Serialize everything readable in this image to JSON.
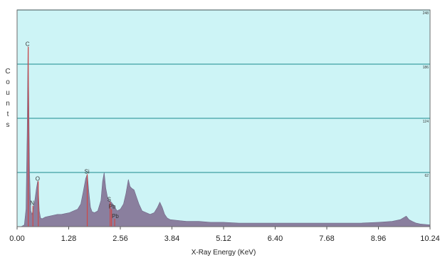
{
  "chart_data": {
    "type": "area",
    "title": "",
    "xlabel": "X-Ray Energy (KeV)",
    "ylabel": "Counts",
    "xlim": [
      0,
      10.24
    ],
    "ylim": [
      0,
      248
    ],
    "x_ticks": [
      "0.00",
      "1.28",
      "2.56",
      "3.84",
      "5.12",
      "6.40",
      "7.68",
      "8.96",
      "10.24"
    ],
    "y_ticks": [
      "62",
      "124",
      "186",
      "248"
    ],
    "grid": true,
    "colors": {
      "background": "#cdf4f6",
      "gridline": "#3f9fa4",
      "spectrum": "#8a7f9e",
      "marker": "#d04848"
    },
    "peaks": [
      {
        "label": "C",
        "x": 0.277,
        "y": 206
      },
      {
        "label": "O",
        "x": 0.525,
        "y": 52
      },
      {
        "label": "N",
        "x": 0.392,
        "y": 24
      },
      {
        "label": "Si",
        "x": 1.74,
        "y": 60
      },
      {
        "label": "S",
        "x": 2.307,
        "y": 28
      },
      {
        "label": "Pb",
        "x": 2.342,
        "y": 20
      },
      {
        "label": "Pb",
        "x": 2.42,
        "y": 9
      }
    ],
    "spectrum": {
      "x": [
        0.0,
        0.1,
        0.18,
        0.22,
        0.25,
        0.27,
        0.29,
        0.31,
        0.34,
        0.37,
        0.4,
        0.44,
        0.48,
        0.51,
        0.53,
        0.55,
        0.58,
        0.62,
        0.7,
        0.8,
        0.9,
        1.0,
        1.1,
        1.2,
        1.3,
        1.4,
        1.5,
        1.58,
        1.64,
        1.7,
        1.74,
        1.78,
        1.82,
        1.86,
        1.92,
        2.0,
        2.08,
        2.12,
        2.16,
        2.2,
        2.24,
        2.28,
        2.34,
        2.4,
        2.48,
        2.56,
        2.64,
        2.7,
        2.76,
        2.8,
        2.84,
        2.9,
        2.96,
        3.02,
        3.1,
        3.2,
        3.3,
        3.4,
        3.48,
        3.54,
        3.6,
        3.66,
        3.72,
        3.8,
        4.0,
        4.2,
        4.5,
        4.8,
        5.12,
        5.5,
        6.0,
        6.4,
        7.0,
        7.68,
        8.0,
        8.5,
        8.96,
        9.3,
        9.5,
        9.65,
        9.72,
        9.8,
        9.9,
        10.0,
        10.24
      ],
      "y": [
        0,
        0,
        2,
        20,
        110,
        206,
        150,
        60,
        18,
        14,
        20,
        30,
        44,
        52,
        40,
        18,
        10,
        9,
        11,
        12,
        13,
        14,
        14,
        15,
        16,
        18,
        20,
        26,
        40,
        55,
        60,
        40,
        22,
        17,
        16,
        18,
        30,
        52,
        62,
        44,
        34,
        30,
        28,
        24,
        18,
        20,
        26,
        38,
        54,
        46,
        44,
        42,
        34,
        26,
        18,
        16,
        14,
        16,
        22,
        28,
        22,
        14,
        10,
        8,
        7,
        6,
        6,
        5,
        5,
        4,
        4,
        4,
        4,
        4,
        4,
        4,
        5,
        6,
        8,
        12,
        8,
        6,
        4,
        3,
        2
      ]
    }
  }
}
